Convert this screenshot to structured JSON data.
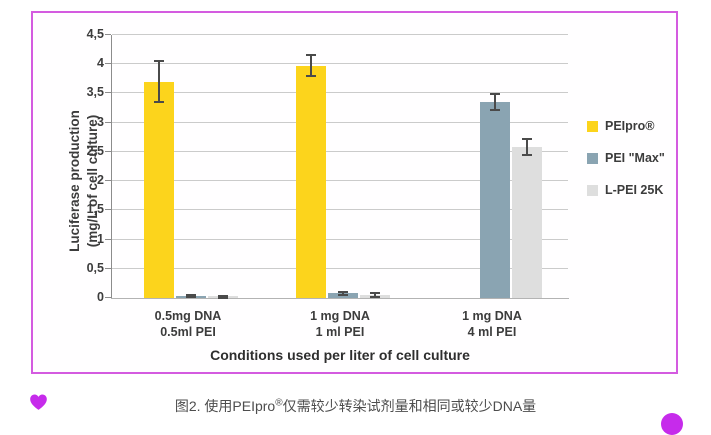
{
  "chart_data": {
    "type": "bar",
    "title": "",
    "xlabel": "Conditions used per liter of cell culture",
    "ylabel": "Luciferase production (mg/L of cell culture)",
    "ylabel_line1": "Luciferase production",
    "ylabel_line2": "(mg/L of cell culture)",
    "ylim": [
      0,
      4.5
    ],
    "ytick_step": 0.5,
    "ytick_labels": [
      "0",
      "0,5",
      "1",
      "1,5",
      "2",
      "2,5",
      "3",
      "3,5",
      "4",
      "4,5"
    ],
    "grid": true,
    "legend_position": "right",
    "categories": [
      {
        "line1": "0.5mg DNA",
        "line2": "0.5ml PEI"
      },
      {
        "line1": "1 mg DNA",
        "line2": "1 ml PEI"
      },
      {
        "line1": "1 mg DNA",
        "line2": "4 ml PEI"
      }
    ],
    "series": [
      {
        "name": "PEIpro®",
        "color": "#FCD41C",
        "values": [
          3.7,
          3.97,
          null
        ],
        "errors": [
          0.35,
          0.18,
          null
        ]
      },
      {
        "name": "PEI \"Max\"",
        "color": "#8AA4B2",
        "values": [
          0.03,
          0.08,
          3.35
        ],
        "errors": [
          0.02,
          0.03,
          0.14
        ]
      },
      {
        "name": "L-PEI 25K",
        "color": "#DEDEDE",
        "values": [
          0.02,
          0.05,
          2.58
        ],
        "errors": [
          0.02,
          0.03,
          0.14
        ]
      }
    ]
  },
  "caption": {
    "prefix": "图2. 使用PEIpro",
    "sup": "®",
    "suffix": "仅需较少转染试剂量和相同或较少DNA量"
  },
  "decorations": {
    "border_color": "#D45BE0",
    "heart_color": "#C62BEB",
    "dot_color": "#C62BEB"
  }
}
